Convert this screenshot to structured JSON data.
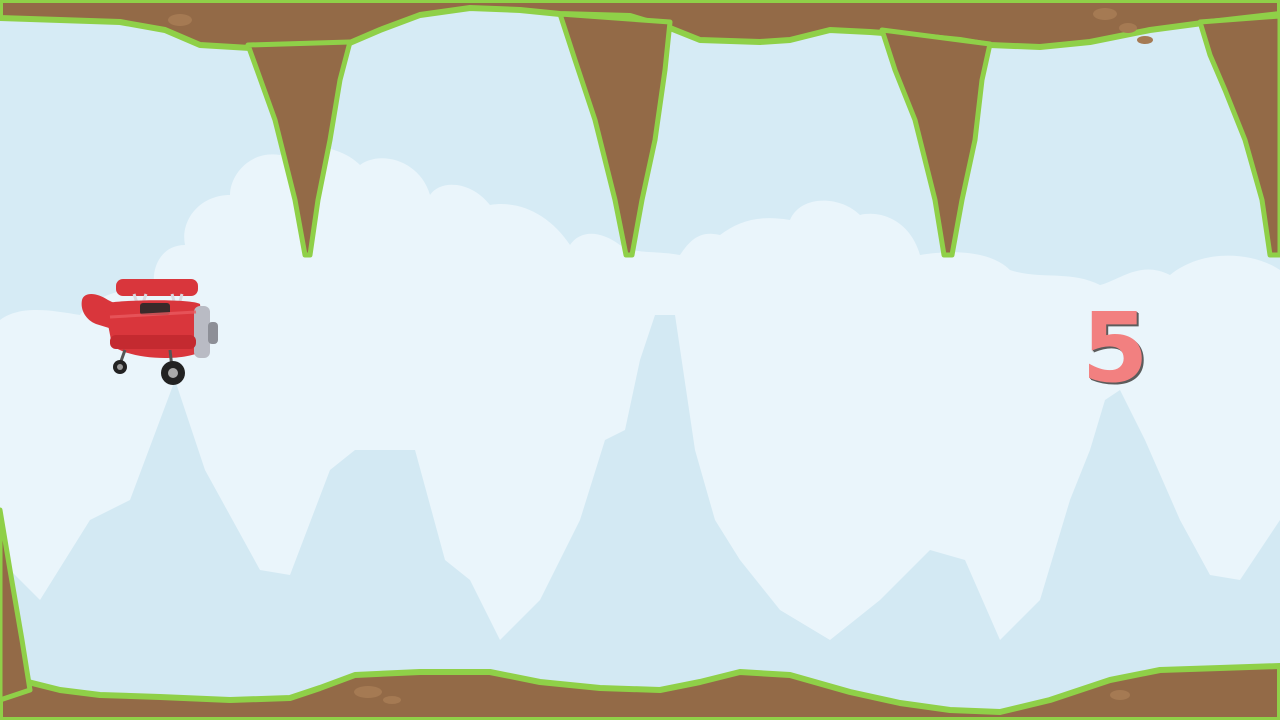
{
  "game": {
    "score": "5"
  },
  "colors": {
    "sky": "#d6ebf5",
    "cloud": "#eaf5fb",
    "mountain": "#d3e9f3",
    "rock": "#936a47",
    "grass": "#8fd048",
    "plane": "#d9363c",
    "score": "#f28080"
  },
  "icons": {
    "player": "red-biplane-icon"
  }
}
